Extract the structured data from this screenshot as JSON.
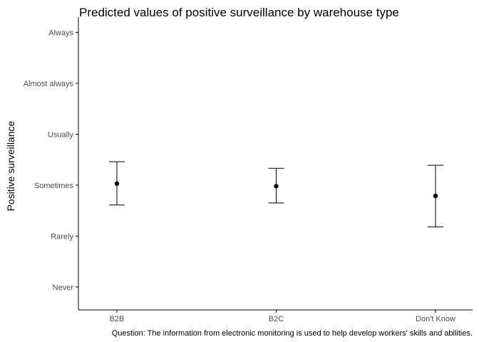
{
  "chart_data": {
    "type": "scatter",
    "title": "Predicted values of positive surveillance by warehouse type",
    "xlabel": "",
    "ylabel": "Positive surveillance",
    "caption": "Question: The information from electronic monitoring is used to help develop workers' skills and abilities.",
    "categories": [
      "B2B",
      "B2C",
      "Don't Know"
    ],
    "y_tick_values": [
      1,
      2,
      3,
      4,
      5,
      6
    ],
    "y_tick_labels": [
      "Never",
      "Rarely",
      "Sometimes",
      "Usually",
      "Almost always",
      "Always"
    ],
    "ylim": [
      0.55,
      6.3
    ],
    "points": [
      {
        "x": "B2B",
        "y": 3.03,
        "lower": 2.61,
        "upper": 3.46
      },
      {
        "x": "B2C",
        "y": 2.98,
        "lower": 2.65,
        "upper": 3.33
      },
      {
        "x": "Don't Know",
        "y": 2.79,
        "lower": 2.18,
        "upper": 3.39
      }
    ],
    "grid": false,
    "legend": "none",
    "colors": {
      "point": "#000000",
      "errorbar": "#000000",
      "axis": "#000000",
      "tick_text": "#4d4d4d"
    }
  }
}
